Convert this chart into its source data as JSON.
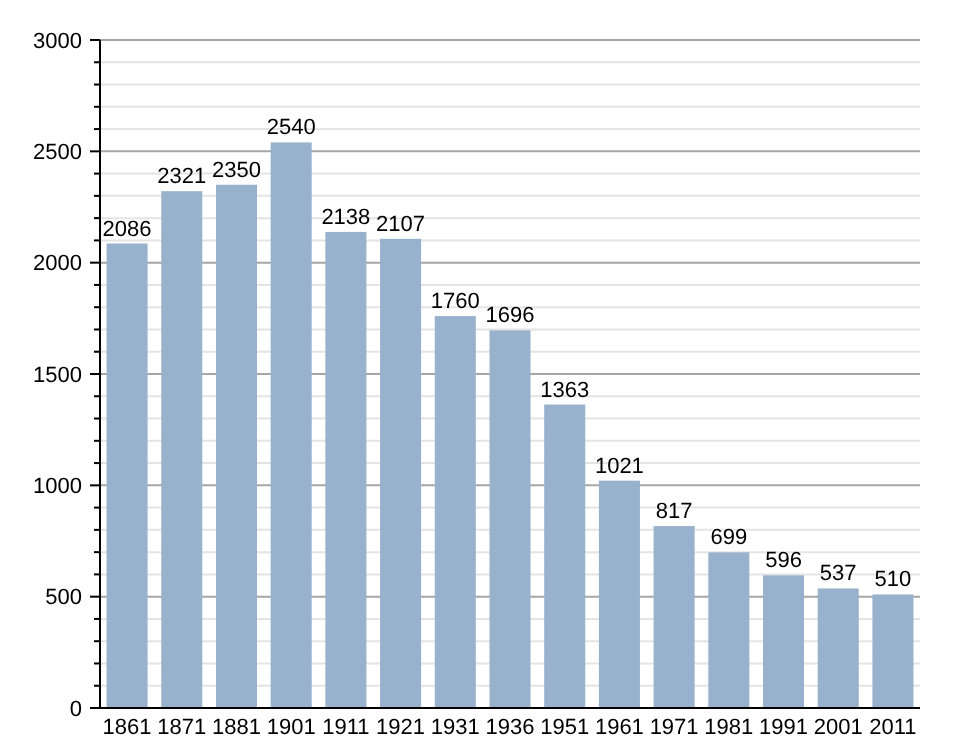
{
  "chart_data": {
    "type": "bar",
    "categories": [
      "1861",
      "1871",
      "1881",
      "1901",
      "1911",
      "1921",
      "1931",
      "1936",
      "1951",
      "1961",
      "1971",
      "1981",
      "1991",
      "2001",
      "2011"
    ],
    "values": [
      2086,
      2321,
      2350,
      2540,
      2138,
      2107,
      1760,
      1696,
      1363,
      1021,
      817,
      699,
      596,
      537,
      510
    ],
    "color": "#98b1cc",
    "ylim": [
      0,
      3000
    ],
    "yticks": [
      0,
      {
        "value": 100,
        "label": null
      },
      {
        "value": 200,
        "label": null
      },
      {
        "value": 300,
        "label": null
      },
      {
        "value": 400,
        "label": null
      },
      500,
      {
        "value": 600,
        "label": null
      },
      {
        "value": 700,
        "label": null
      },
      {
        "value": 800,
        "label": null
      },
      {
        "value": 900,
        "label": null
      },
      1000,
      {
        "value": 1100,
        "label": null
      },
      {
        "value": 1200,
        "label": null
      },
      {
        "value": 1300,
        "label": null
      },
      {
        "value": 1400,
        "label": null
      },
      1500,
      {
        "value": 1600,
        "label": null
      },
      {
        "value": 1700,
        "label": null
      },
      {
        "value": 1800,
        "label": null
      },
      {
        "value": 1900,
        "label": null
      },
      2000,
      {
        "value": 2100,
        "label": null
      },
      {
        "value": 2200,
        "label": null
      },
      {
        "value": 2300,
        "label": null
      },
      {
        "value": 2400,
        "label": null
      },
      2500,
      {
        "value": 2600,
        "label": null
      },
      {
        "value": 2700,
        "label": null
      },
      {
        "value": 2800,
        "label": null
      },
      {
        "value": 2900,
        "label": null
      },
      3000
    ],
    "grid": true,
    "data_labels": true
  }
}
